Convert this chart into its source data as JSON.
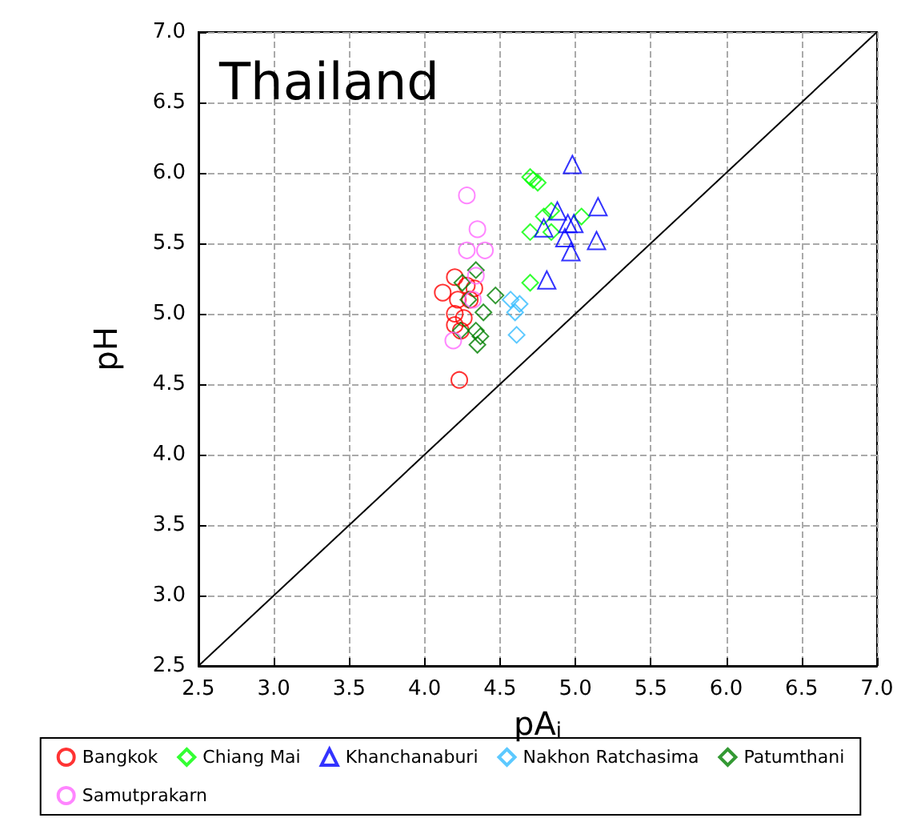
{
  "chart_data": {
    "type": "scatter",
    "title": "Thailand",
    "xlabel": "pA$_{i}$",
    "ylabel": "pH",
    "xlim": [
      2.5,
      7.0
    ],
    "xticks": [
      {
        "value": 2.5,
        "label": "2.5"
      },
      {
        "value": 3,
        "label": "3.0"
      },
      {
        "value": 3.5,
        "label": "3.5"
      },
      {
        "value": 4,
        "label": "4.0"
      },
      {
        "value": 4.5,
        "label": "4.5"
      },
      {
        "value": 5,
        "label": "5.0"
      },
      {
        "value": 5.5,
        "label": "5.5"
      },
      {
        "value": 6,
        "label": "6.0"
      },
      {
        "value": 6.5,
        "label": "6.5"
      },
      {
        "value": 7,
        "label": "7.0"
      }
    ],
    "ylim": [
      2.5,
      7.0
    ],
    "yticks": [
      {
        "value": 2.5,
        "label": "2.5"
      },
      {
        "value": 3,
        "label": "3.0"
      },
      {
        "value": 3.5,
        "label": "3.5"
      },
      {
        "value": 4,
        "label": "4.0"
      },
      {
        "value": 4.5,
        "label": "4.5"
      },
      {
        "value": 5,
        "label": "5.0"
      },
      {
        "value": 5.5,
        "label": "5.5"
      },
      {
        "value": 6,
        "label": "6.0"
      },
      {
        "value": 6.5,
        "label": "6.5"
      },
      {
        "value": 7,
        "label": "7.0"
      }
    ],
    "grid": true,
    "legend": "bottom",
    "series": [
      {
        "name": "Bangkok",
        "color": "#ff0000",
        "marker": "circle",
        "x": [
          4.12,
          4.2,
          4.28,
          4.22,
          4.3,
          4.33,
          4.2,
          4.26,
          4.2,
          4.24,
          4.23
        ],
        "values": [
          5.15,
          5.26,
          5.2,
          5.1,
          5.1,
          5.18,
          5.0,
          4.97,
          4.92,
          4.88,
          4.53
        ]
      },
      {
        "name": "Chiang Mai",
        "color": "#00ff00",
        "marker": "diamond",
        "x": [
          4.72,
          4.7,
          4.75,
          4.79,
          4.84,
          5.04,
          4.7,
          4.84,
          4.7
        ],
        "values": [
          5.95,
          5.97,
          5.93,
          5.69,
          5.73,
          5.69,
          5.58,
          5.58,
          5.22
        ]
      },
      {
        "name": "Khanchanaburi",
        "color": "#0000ff",
        "marker": "triangle",
        "x": [
          4.98,
          5.15,
          4.88,
          4.79,
          4.95,
          4.99,
          4.93,
          5.14,
          4.97,
          4.81
        ],
        "values": [
          6.06,
          5.76,
          5.73,
          5.61,
          5.64,
          5.64,
          5.54,
          5.52,
          5.44,
          5.24
        ]
      },
      {
        "name": "Nakhon Ratchasima",
        "color": "#33bbff",
        "marker": "diamond",
        "x": [
          4.57,
          4.63,
          4.6,
          4.61
        ],
        "values": [
          5.1,
          5.07,
          5.01,
          4.85
        ]
      },
      {
        "name": "Patumthani",
        "color": "#008000",
        "marker": "diamond",
        "x": [
          4.34,
          4.25,
          4.29,
          4.47,
          4.39,
          4.24,
          4.34,
          4.37,
          4.35
        ],
        "values": [
          5.31,
          5.22,
          5.1,
          5.13,
          5.01,
          4.88,
          4.88,
          4.84,
          4.78
        ]
      },
      {
        "name": "Samutprakarn",
        "color": "#ff66ff",
        "marker": "circle",
        "x": [
          4.28,
          4.35,
          4.28,
          4.4,
          4.34,
          4.32,
          4.19
        ],
        "values": [
          5.84,
          5.6,
          5.45,
          5.45,
          5.27,
          5.1,
          4.81
        ]
      },
      {
        "type": "line",
        "color": "#000000",
        "marker": "none",
        "x": [
          2.5,
          7.0
        ],
        "values": [
          2.5,
          7.0
        ]
      }
    ]
  }
}
